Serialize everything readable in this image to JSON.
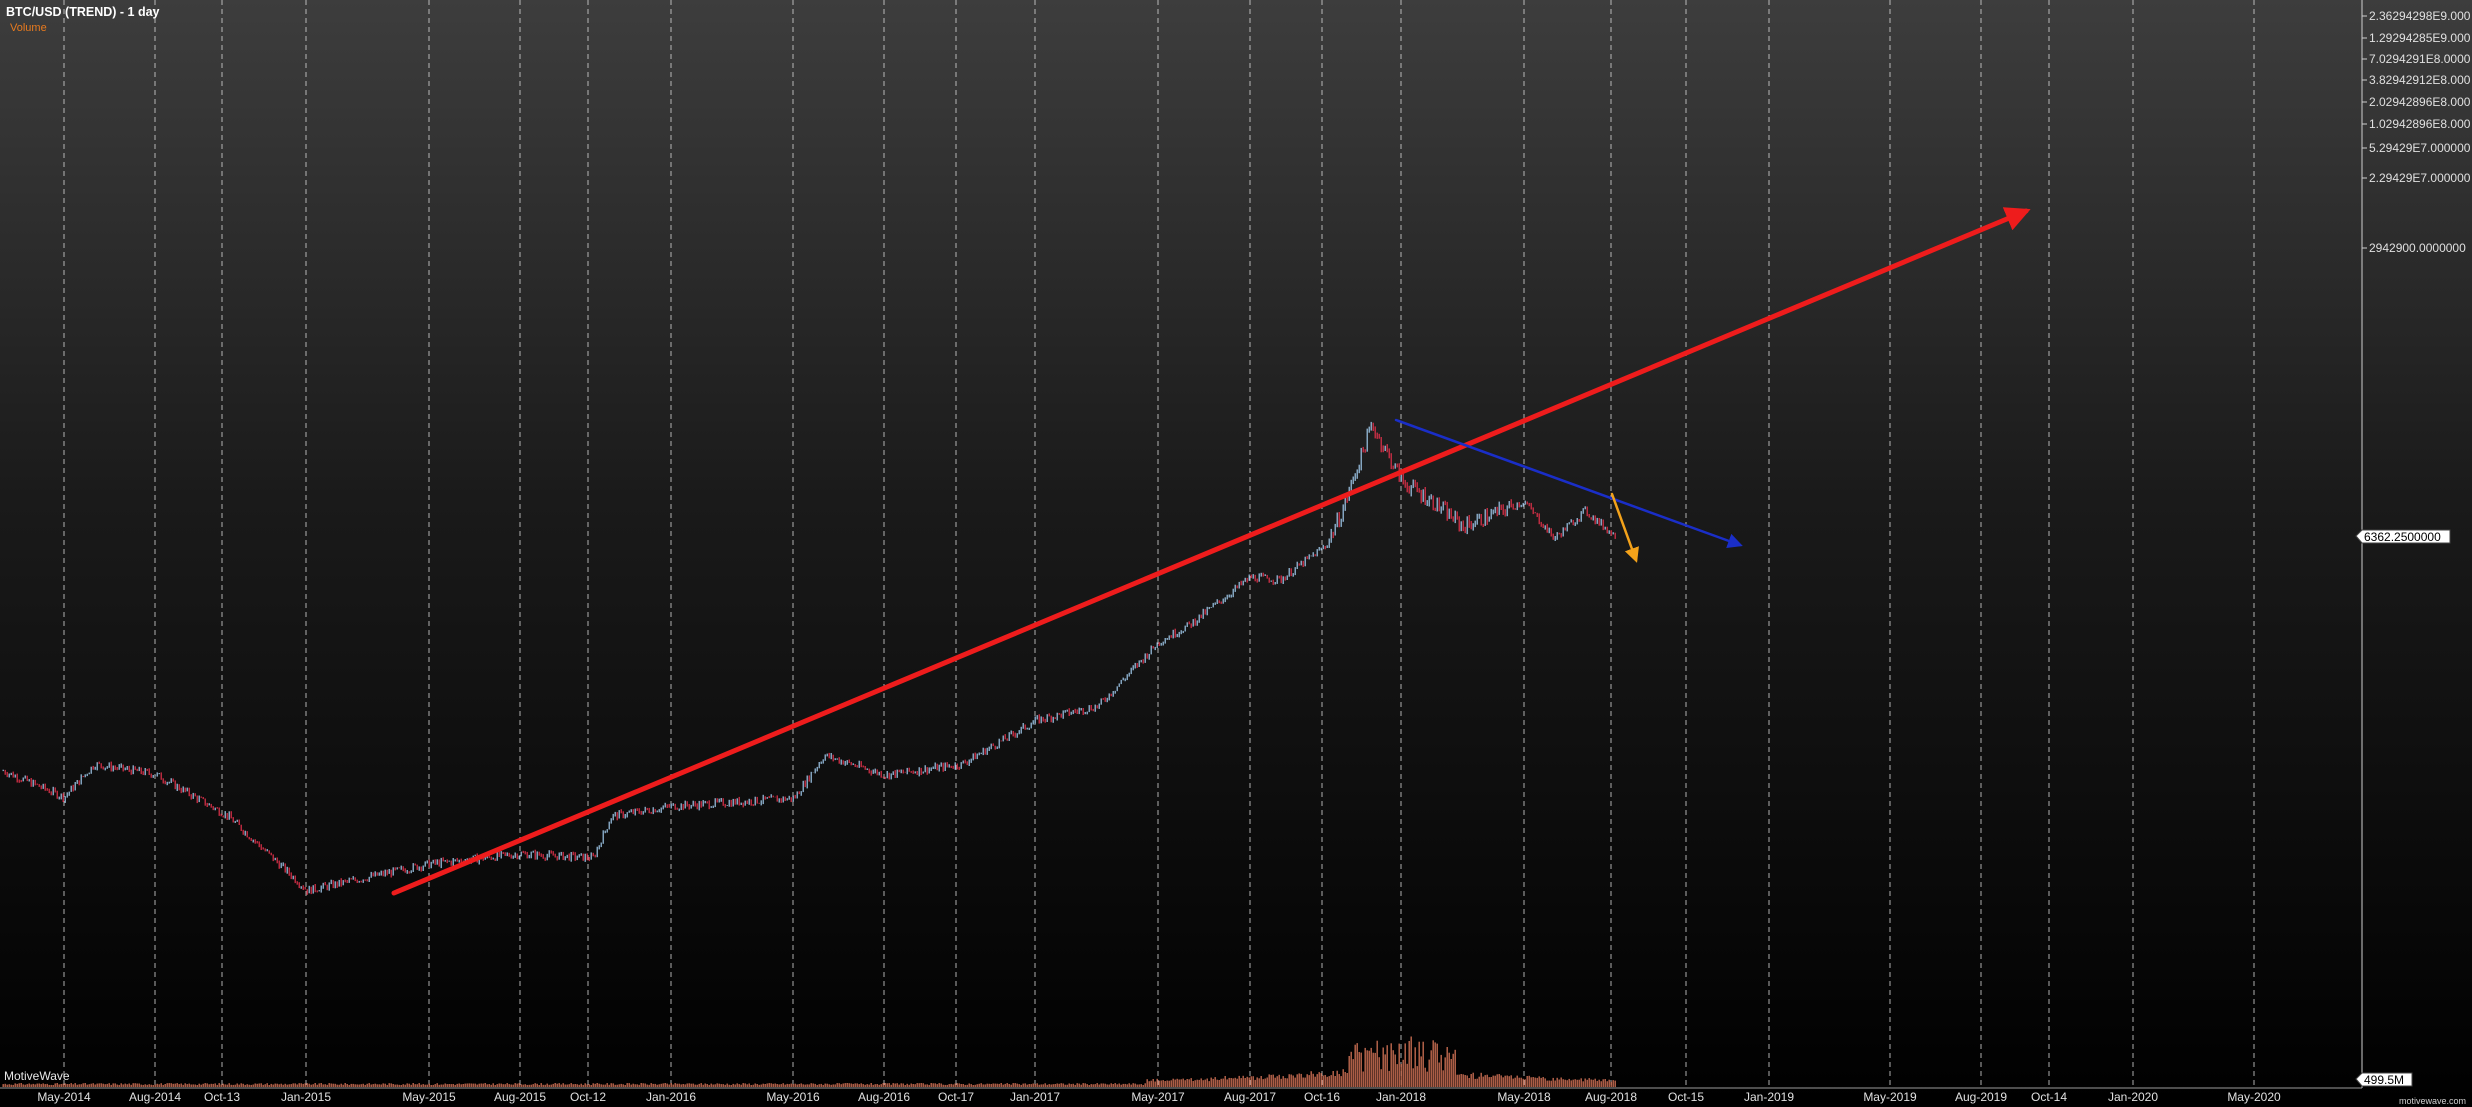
{
  "header": {
    "title": "BTC/USD (TREND) - 1 day",
    "volume_label": "Volume",
    "watermark": "MotiveWave",
    "site": "motivewave.com"
  },
  "colors": {
    "background_top": "#3d3d3d",
    "background_bottom": "#000000",
    "gridline": "#d8d8d8",
    "axis_text": "#e0e0e0",
    "title": "#ffffff",
    "volume_label": "#e87a1e",
    "candle_up": "#9fc8ea",
    "candle_down": "#e3314b",
    "volume_bar": "#e07a5c",
    "trend_red": "#ee1c1c",
    "trend_blue": "#1a2ec8",
    "trend_orange": "#f3a21a"
  },
  "chart_data": {
    "type": "candlestick",
    "symbol": "BTC/USD",
    "interval": "1 day",
    "y_scale": "log",
    "grid": "vertical dashed lines at x-axis ticks",
    "x_ticks": [
      "May-2014",
      "Aug-2014",
      "Oct-13",
      "Jan-2015",
      "May-2015",
      "Aug-2015",
      "Oct-12",
      "Jan-2016",
      "May-2016",
      "Aug-2016",
      "Oct-17",
      "Jan-2017",
      "May-2017",
      "Aug-2017",
      "Oct-16",
      "Jan-2018",
      "May-2018",
      "Aug-2018",
      "Oct-15",
      "Jan-2019",
      "May-2019",
      "Aug-2019",
      "Oct-14",
      "Jan-2020",
      "May-2020"
    ],
    "y_ticks": [
      "2.36294298E9.000",
      "1.29294285E9.000",
      "7.0294291E8.0000",
      "3.82942912E8.000",
      "2.02942896E8.000",
      "1.02942896E8.000",
      "5.29429E7.000000",
      "2.29429E7.000000",
      "2942900.0000000"
    ],
    "price_badge": "6362.2500000",
    "volume_badge": "499.5M",
    "price_series": [
      [
        "Mar-2014",
        600
      ],
      [
        "May-2014",
        460
      ],
      [
        "Jun-2014",
        640
      ],
      [
        "Aug-2014",
        580
      ],
      [
        "Oct-13",
        380
      ],
      [
        "Jan-2015",
        180
      ],
      [
        "May-2015",
        235
      ],
      [
        "Aug-2015",
        260
      ],
      [
        "Oct-12",
        250
      ],
      [
        "Nov-2015",
        380
      ],
      [
        "Jan-2016",
        420
      ],
      [
        "May-2016",
        455
      ],
      [
        "Jun-2016",
        700
      ],
      [
        "Aug-2016",
        575
      ],
      [
        "Oct-17",
        640
      ],
      [
        "Jan-2017",
        1000
      ],
      [
        "Mar-2017",
        1150
      ],
      [
        "May-2017",
        2200
      ],
      [
        "Jun-2017",
        2600
      ],
      [
        "Aug-2017",
        4200
      ],
      [
        "Sep-2017",
        4100
      ],
      [
        "Oct-16",
        5800
      ],
      [
        "Nov-2017",
        8000
      ],
      [
        "Dec-2017",
        19500
      ],
      [
        "Jan-2018",
        11000
      ],
      [
        "Feb-2018",
        9000
      ],
      [
        "Mar-2018",
        7000
      ],
      [
        "May-2018",
        9000
      ],
      [
        "Jun-2018",
        6200
      ],
      [
        "Jul-2018",
        8200
      ],
      [
        "Aug-2018",
        6362.25
      ]
    ],
    "trend_lines": [
      {
        "color": "red",
        "from": [
          "Apr-2015",
          140
        ],
        "to": [
          "Sep-2019",
          130000
        ]
      },
      {
        "color": "blue",
        "from": [
          "Dec-2017",
          20000
        ],
        "to": [
          "Nov-2018",
          6000
        ]
      },
      {
        "color": "orange",
        "from": [
          "Aug-2018",
          8200
        ],
        "to": [
          "Aug-2018",
          5300
        ]
      }
    ],
    "volume_peak": "Dec-2017"
  }
}
